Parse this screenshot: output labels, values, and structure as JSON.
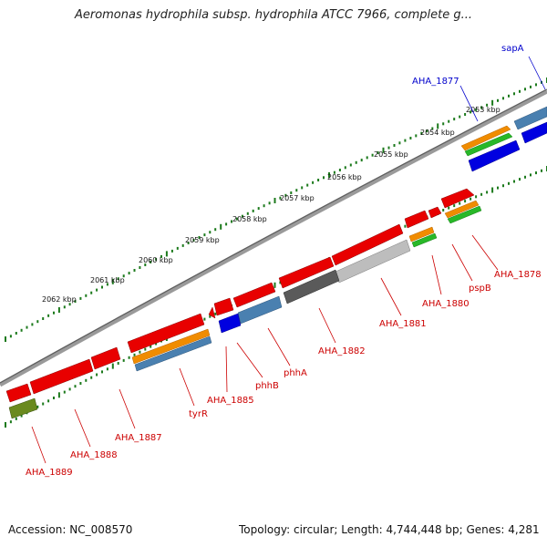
{
  "title": "Aeromonas hydrophila subsp. hydrophila ATCC 7966, complete g...",
  "footer": {
    "accession": "Accession: NC_008570",
    "info": "Topology: circular; Length: 4,744,448 bp; Genes: 4,281"
  },
  "colors": {
    "backbone": "#888888",
    "ticks": "#1c7a1c",
    "red": "#e80000",
    "blue": "#0000e0",
    "steelblue": "#4a80b0",
    "orange": "#f08c00",
    "green": "#28b828",
    "olive": "#6a8a1e",
    "darkgray": "#5a5a5a",
    "lightgray": "#bdbdbd"
  },
  "ruler_labels": [
    "2053 kbp",
    "2054 kbp",
    "2055 kbp",
    "2056 kbp",
    "2057 kbp",
    "2058 kbp",
    "2059 kbp",
    "2060 kbp",
    "2061 kbp",
    "2062 kbp"
  ],
  "gene_labels": {
    "sapA": "sapA",
    "AHA_1877": "AHA_1877",
    "AHA_1878": "AHA_1878",
    "pspB": "pspB",
    "AHA_1880": "AHA_1880",
    "AHA_1881": "AHA_1881",
    "AHA_1882": "AHA_1882",
    "phhA": "phhA",
    "phhB": "phhB",
    "AHA_1885": "AHA_1885",
    "tyrR": "tyrR",
    "AHA_1887": "AHA_1887",
    "AHA_1888": "AHA_1888",
    "AHA_1889": "AHA_1889"
  }
}
